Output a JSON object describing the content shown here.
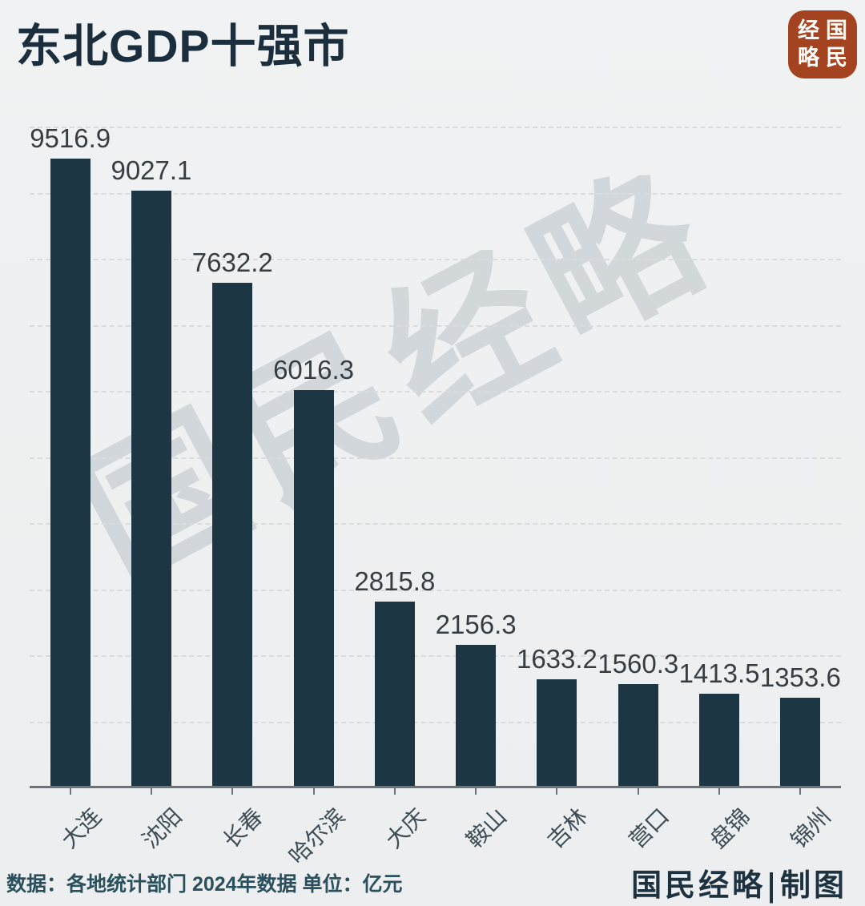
{
  "page": {
    "background_color": "#eef0f1"
  },
  "header": {
    "title": "东北GDP十强市",
    "title_color": "#1b2e3d"
  },
  "logo": {
    "name": "国民经略",
    "background_color": "#a34320",
    "text_color": "#ffffff",
    "grid_chars": [
      "经",
      "国",
      "略",
      "民"
    ]
  },
  "watermark": {
    "text": "国民经略"
  },
  "chart_data": {
    "type": "bar",
    "title": "东北GDP十强市",
    "categories": [
      "大连",
      "沈阳",
      "长春",
      "哈尔滨",
      "大庆",
      "鞍山",
      "吉林",
      "营口",
      "盘锦",
      "锦州"
    ],
    "values": [
      9516.9,
      9027.1,
      7632.2,
      6016.3,
      2815.8,
      2156.3,
      1633.2,
      1560.3,
      1413.5,
      1353.6
    ],
    "value_labels": [
      "9516.9",
      "9027.1",
      "7632.2",
      "6016.3",
      "2815.8",
      "2156.3",
      "1633.2",
      "1560.3",
      "1413.5",
      "1353.6"
    ],
    "unit": "亿元",
    "xlabel": "",
    "ylabel": "",
    "ylim": [
      0,
      10000
    ],
    "gridline_interval": 1000,
    "grid": "horizontal-dashed",
    "legend": "none",
    "bar_color": "#1d3644",
    "axis_color": "#6d737a",
    "gridline_color": "#d9dcde",
    "value_label_position": "above-bars",
    "tick_label_rotation_deg": 45
  },
  "footer": {
    "source": "数据：各地统计部门 2024年数据  单位：亿元",
    "credit": "国民经略|制图"
  }
}
